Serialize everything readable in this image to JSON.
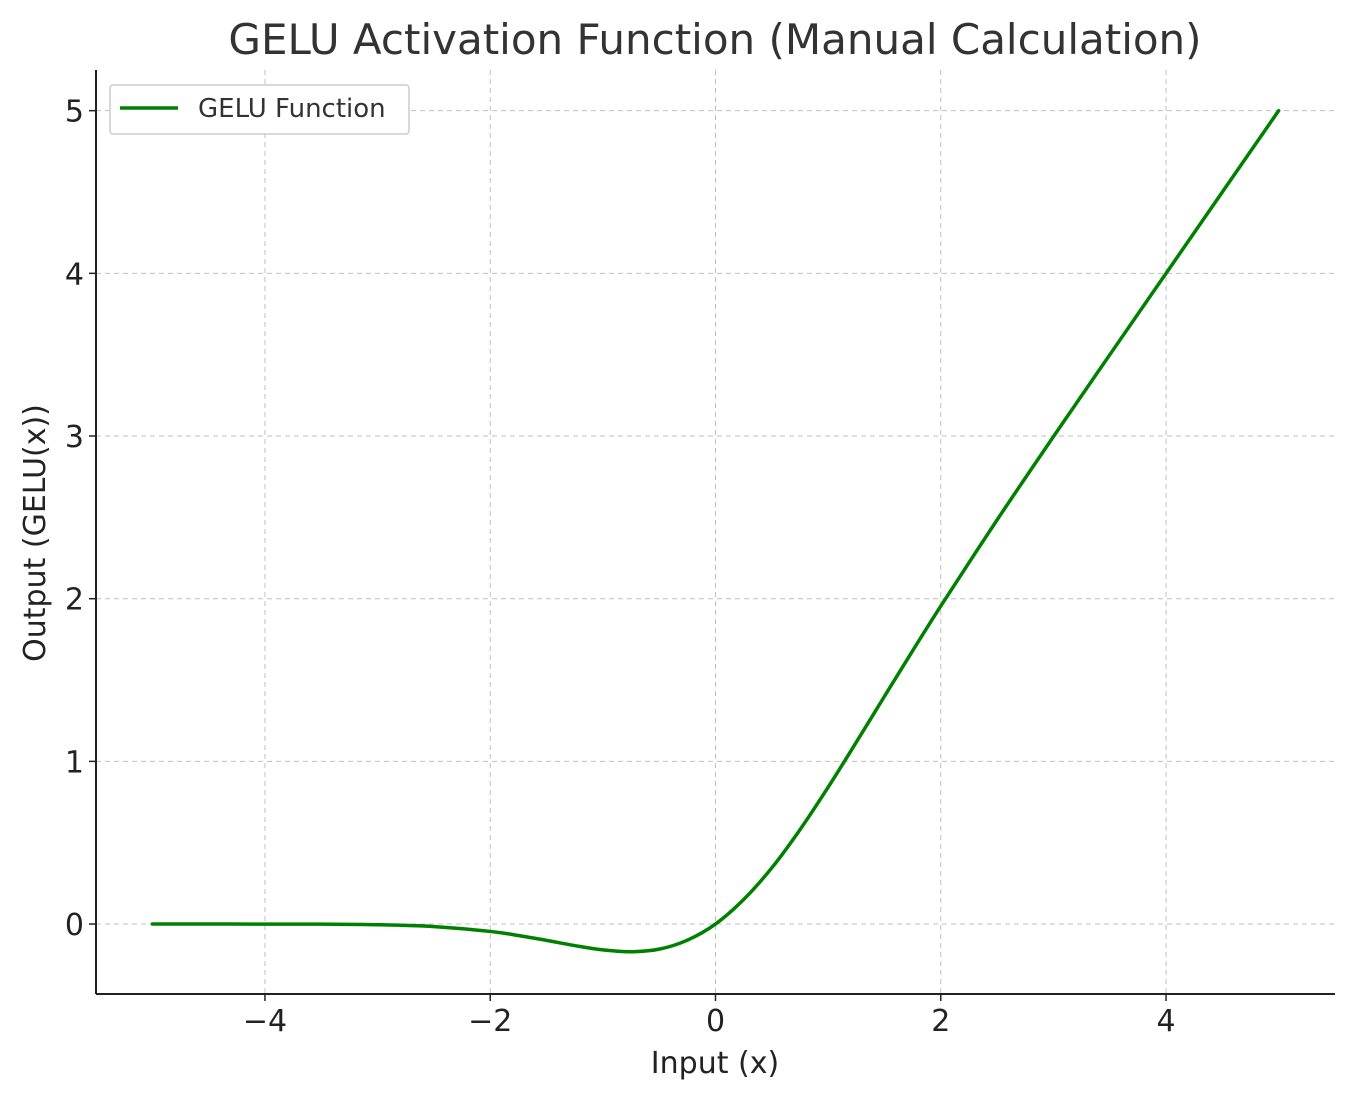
{
  "chart_data": {
    "type": "line",
    "title": "GELU Activation Function (Manual Calculation)",
    "xlabel": "Input (x)",
    "ylabel": "Output (GELU(x))",
    "xlim": [
      -5.5,
      5.5
    ],
    "ylim": [
      -0.43,
      5.25
    ],
    "xticks": [
      -4,
      -2,
      0,
      2,
      4
    ],
    "xtick_labels": [
      "−4",
      "−2",
      "0",
      "2",
      "4"
    ],
    "yticks": [
      0,
      1,
      2,
      3,
      4,
      5
    ],
    "ytick_labels": [
      "0",
      "1",
      "2",
      "3",
      "4",
      "5"
    ],
    "grid": true,
    "legend_position": "top-left",
    "series": [
      {
        "name": "GELU Function",
        "color": "#008000",
        "x": [
          -5.0,
          -4.5,
          -4.0,
          -3.5,
          -3.0,
          -2.5,
          -2.0,
          -1.75,
          -1.5,
          -1.25,
          -1.0,
          -0.75,
          -0.5,
          -0.25,
          0.0,
          0.25,
          0.5,
          0.75,
          1.0,
          1.25,
          1.5,
          1.75,
          2.0,
          2.5,
          3.0,
          3.5,
          4.0,
          4.5,
          5.0
        ],
        "y": [
          0.0,
          0.0,
          -0.0001,
          -0.0008,
          -0.004,
          -0.0155,
          -0.0454,
          -0.0702,
          -0.1004,
          -0.1322,
          -0.1588,
          -0.17,
          -0.1543,
          -0.0991,
          0.0,
          0.1509,
          0.3457,
          0.58,
          0.8412,
          1.1178,
          1.3996,
          1.6798,
          1.9546,
          2.4845,
          2.996,
          3.4992,
          3.9999,
          4.5,
          5.0
        ]
      }
    ]
  }
}
